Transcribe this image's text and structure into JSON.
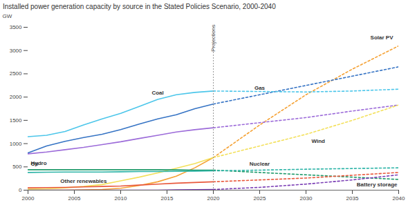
{
  "chart_data": {
    "type": "line",
    "title": "Installed power generation capacity by source in the Stated Policies Scenario, 2000-2040",
    "y_label": "GW",
    "x": [
      2000,
      2002,
      2004,
      2006,
      2008,
      2010,
      2012,
      2014,
      2016,
      2018,
      2020,
      2025,
      2030,
      2035,
      2040
    ],
    "series": [
      {
        "name": "Solar PV",
        "color": "#f5a133",
        "values": [
          0,
          0,
          0,
          5,
          15,
          40,
          100,
          180,
          300,
          480,
          700,
          1400,
          2050,
          2600,
          3100
        ]
      },
      {
        "name": "Gas",
        "color": "#3573c4",
        "values": [
          800,
          950,
          1050,
          1130,
          1200,
          1300,
          1420,
          1530,
          1620,
          1750,
          1850,
          2050,
          2250,
          2450,
          2650
        ]
      },
      {
        "name": "Coal",
        "color": "#4cc6ea",
        "values": [
          1150,
          1180,
          1260,
          1400,
          1530,
          1650,
          1800,
          1950,
          2050,
          2100,
          2130,
          2120,
          2110,
          2130,
          2170
        ]
      },
      {
        "name": "Hydro",
        "color": "#9c6bd9",
        "values": [
          780,
          820,
          870,
          920,
          980,
          1040,
          1110,
          1180,
          1250,
          1300,
          1340,
          1450,
          1560,
          1700,
          1830
        ]
      },
      {
        "name": "Wind",
        "color": "#f3e05a",
        "values": [
          20,
          30,
          50,
          80,
          120,
          200,
          280,
          370,
          470,
          570,
          700,
          950,
          1200,
          1500,
          1830
        ]
      },
      {
        "name": "Oil",
        "color": "#1f9a6a",
        "values": [
          440,
          440,
          440,
          440,
          440,
          440,
          440,
          440,
          435,
          430,
          430,
          380,
          330,
          280,
          230
        ]
      },
      {
        "name": "Nuclear",
        "color": "#2bb3a6",
        "values": [
          380,
          385,
          390,
          390,
          390,
          395,
          400,
          400,
          405,
          410,
          415,
          430,
          450,
          465,
          480
        ]
      },
      {
        "name": "Other renewables",
        "color": "#e8573b",
        "values": [
          50,
          55,
          60,
          70,
          80,
          90,
          110,
          130,
          150,
          165,
          180,
          220,
          260,
          320,
          380
        ]
      },
      {
        "name": "Battery storage",
        "color": "#7b3fb5",
        "values": [
          0,
          0,
          0,
          0,
          0,
          0,
          0,
          0,
          5,
          10,
          15,
          60,
          130,
          220,
          330
        ]
      }
    ],
    "annotations": [
      {
        "text": "Projections",
        "x": 2020
      }
    ],
    "xlim": [
      2000,
      2040
    ],
    "xticks": [
      2000,
      2005,
      2010,
      2015,
      2020,
      2025,
      2030,
      2035,
      2040
    ],
    "ylim": [
      0,
      3500
    ],
    "yticks": [
      0,
      500,
      1000,
      1500,
      2000,
      2500,
      3000,
      3500
    ],
    "grid": false
  }
}
